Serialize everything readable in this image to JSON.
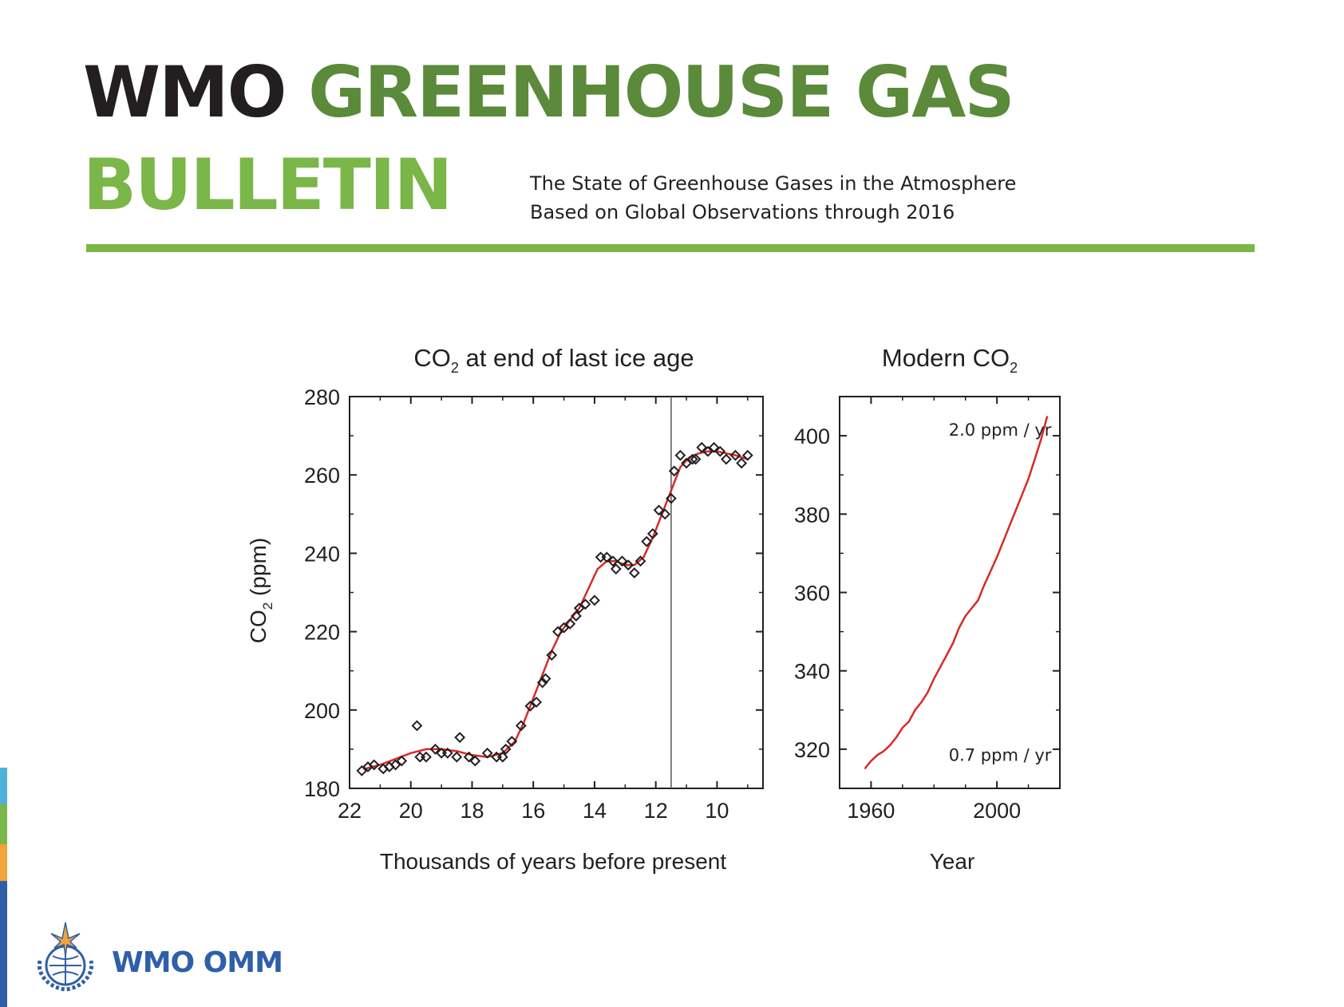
{
  "header": {
    "title_wmo": "WMO",
    "title_greenhouse_gas": "GREENHOUSE GAS",
    "title_bulletin": "BULLETIN",
    "subtitle_line1": "The State of Greenhouse Gases in the Atmosphere",
    "subtitle_line2": "Based on Global Observations through 2016"
  },
  "footer": {
    "logo_text": "WMO OMM"
  },
  "colors": {
    "title_dark": "#231f20",
    "title_green_dark": "#5b8a3a",
    "title_green_light": "#7ab648",
    "curve_red": "#d62b26",
    "logo_blue": "#2f5fa8",
    "strip_cyan": "#4fb3d9",
    "strip_green": "#7ab648",
    "strip_orange": "#f2a33a",
    "strip_blue": "#2f5fa8"
  },
  "chart_data": [
    {
      "type": "scatter",
      "title": "CO2 at end of last ice age",
      "title_main": "CO",
      "title_sub": "2",
      "title_rest": " at end of last ice age",
      "xlabel": "Thousands of years before present",
      "ylabel": "CO2 (ppm)",
      "ylabel_main": "CO",
      "ylabel_sub": "2",
      "ylabel_rest": " (ppm)",
      "xlim": [
        22,
        8.5
      ],
      "ylim": [
        180,
        280
      ],
      "xticks": [
        22,
        20,
        18,
        16,
        14,
        12,
        10
      ],
      "yticks": [
        180,
        200,
        220,
        240,
        260,
        280
      ],
      "vline_x": 11.5,
      "series": [
        {
          "name": "ice core measurements",
          "marker": "diamond",
          "points": [
            [
              21.6,
              184.5
            ],
            [
              21.4,
              185.5
            ],
            [
              21.2,
              186
            ],
            [
              20.9,
              185
            ],
            [
              20.7,
              185.5
            ],
            [
              20.5,
              186
            ],
            [
              20.3,
              187
            ],
            [
              19.8,
              196
            ],
            [
              19.7,
              188
            ],
            [
              19.5,
              188
            ],
            [
              19.2,
              190
            ],
            [
              19.0,
              189
            ],
            [
              18.8,
              189
            ],
            [
              18.5,
              188
            ],
            [
              18.4,
              193
            ],
            [
              18.1,
              188
            ],
            [
              17.9,
              187
            ],
            [
              17.5,
              189
            ],
            [
              17.2,
              188
            ],
            [
              17.0,
              188
            ],
            [
              16.9,
              190
            ],
            [
              16.7,
              192
            ],
            [
              16.4,
              196
            ],
            [
              16.1,
              201
            ],
            [
              15.9,
              202
            ],
            [
              15.7,
              207
            ],
            [
              15.6,
              208
            ],
            [
              15.4,
              214
            ],
            [
              15.2,
              220
            ],
            [
              15.0,
              221
            ],
            [
              14.8,
              222
            ],
            [
              14.6,
              224
            ],
            [
              14.5,
              226
            ],
            [
              14.3,
              227
            ],
            [
              14.0,
              228
            ],
            [
              13.8,
              239
            ],
            [
              13.6,
              239
            ],
            [
              13.4,
              238
            ],
            [
              13.3,
              236
            ],
            [
              13.1,
              238
            ],
            [
              12.9,
              237
            ],
            [
              12.7,
              235
            ],
            [
              12.5,
              238
            ],
            [
              12.3,
              243
            ],
            [
              12.1,
              245
            ],
            [
              11.9,
              251
            ],
            [
              11.7,
              250
            ],
            [
              11.5,
              254
            ],
            [
              11.4,
              261
            ],
            [
              11.2,
              265
            ],
            [
              11.0,
              263
            ],
            [
              10.8,
              264
            ],
            [
              10.7,
              264
            ],
            [
              10.5,
              267
            ],
            [
              10.3,
              266
            ],
            [
              10.1,
              267
            ],
            [
              9.9,
              266
            ],
            [
              9.7,
              264
            ],
            [
              9.4,
              265
            ],
            [
              9.2,
              263
            ],
            [
              9.0,
              265
            ]
          ]
        },
        {
          "name": "smoothed fit",
          "marker": "line",
          "points": [
            [
              21.5,
              185
            ],
            [
              21.0,
              186
            ],
            [
              20.5,
              187.5
            ],
            [
              20.0,
              189
            ],
            [
              19.5,
              190
            ],
            [
              19.0,
              190
            ],
            [
              18.5,
              189.5
            ],
            [
              18.0,
              188.5
            ],
            [
              17.5,
              188
            ],
            [
              17.0,
              189
            ],
            [
              16.6,
              192
            ],
            [
              16.3,
              197
            ],
            [
              16.0,
              203
            ],
            [
              15.7,
              209
            ],
            [
              15.4,
              215
            ],
            [
              15.1,
              220
            ],
            [
              14.8,
              223
            ],
            [
              14.5,
              226
            ],
            [
              14.2,
              231
            ],
            [
              13.9,
              236
            ],
            [
              13.6,
              238
            ],
            [
              13.3,
              238
            ],
            [
              13.0,
              237
            ],
            [
              12.7,
              237
            ],
            [
              12.4,
              239
            ],
            [
              12.1,
              244
            ],
            [
              11.8,
              250
            ],
            [
              11.5,
              256
            ],
            [
              11.2,
              262
            ],
            [
              10.9,
              264.5
            ],
            [
              10.6,
              265.5
            ],
            [
              10.3,
              266
            ],
            [
              10.0,
              266
            ],
            [
              9.7,
              265.5
            ],
            [
              9.4,
              265
            ],
            [
              9.0,
              264
            ]
          ]
        }
      ]
    },
    {
      "type": "line",
      "title": "Modern CO2",
      "title_main": "Modern CO",
      "title_sub": "2",
      "xlabel": "Year",
      "xlim": [
        1950,
        2020
      ],
      "ylim": [
        310,
        410
      ],
      "xticks": [
        1960,
        2000
      ],
      "yticks": [
        320,
        340,
        360,
        380,
        400
      ],
      "annotations": [
        {
          "text": "2.0 ppm / yr",
          "x": 2001,
          "y": 400
        },
        {
          "text": "0.7 ppm / yr",
          "x": 2001,
          "y": 317
        }
      ],
      "series": [
        {
          "name": "CO2 concentration",
          "x": [
            1958,
            1960,
            1962,
            1964,
            1966,
            1968,
            1970,
            1972,
            1974,
            1976,
            1978,
            1980,
            1982,
            1984,
            1986,
            1988,
            1990,
            1992,
            1994,
            1996,
            1998,
            2000,
            2002,
            2004,
            2006,
            2008,
            2010,
            2012,
            2014,
            2016
          ],
          "values": [
            315,
            317,
            318.5,
            319.5,
            321,
            323,
            325.5,
            327,
            330,
            332,
            334.5,
            338,
            341,
            344,
            347,
            351,
            354,
            356,
            358,
            362,
            365.5,
            369,
            373,
            377,
            381,
            385,
            389,
            394,
            399,
            405
          ]
        }
      ]
    }
  ]
}
